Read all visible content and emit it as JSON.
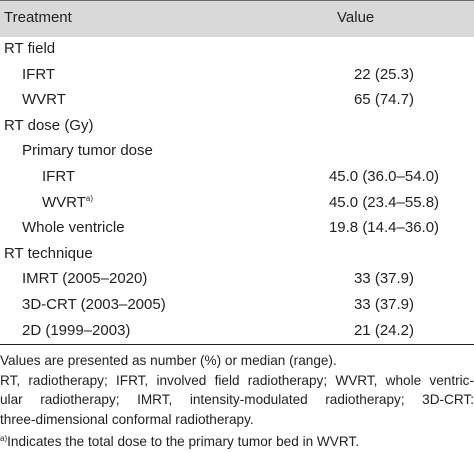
{
  "table": {
    "header": {
      "col1": "Treatment",
      "col2": "Value"
    },
    "rows": [
      {
        "label": "RT field",
        "value": ""
      },
      {
        "label": "IFRT",
        "value": "22 (25.3)"
      },
      {
        "label": "WVRT",
        "value": "65 (74.7)"
      },
      {
        "label": "RT dose (Gy)",
        "value": ""
      },
      {
        "label": "Primary tumor dose",
        "value": ""
      },
      {
        "label": "IFRT",
        "value": "45.0 (36.0–54.0)"
      },
      {
        "label": "WVRT",
        "sup": "a)",
        "value": "45.0 (23.4–55.8)"
      },
      {
        "label": "Whole ventricle",
        "value": "19.8 (14.4–36.0)"
      },
      {
        "label": "RT technique",
        "value": ""
      },
      {
        "label": "IMRT (2005–2020)",
        "value": "33 (37.9)"
      },
      {
        "label": "3D-CRT (2003–2005)",
        "value": "33 (37.9)"
      },
      {
        "label": "2D (1999–2003)",
        "value": "21 (24.2)"
      }
    ]
  },
  "notes": {
    "line1": "Values are presented as number (%) or median (range).",
    "line2": "RT, radiotherapy; IFRT, involved field radiotherapy; WVRT, whole ventric-",
    "line3": "ular radiotherapy; IMRT, intensity-modulated radiotherapy; 3D-CRT:",
    "line4": "three-dimensional conformal radiotherapy.",
    "footnote_mark": "a)",
    "footnote_text": "Indicates the total dose to the primary tumor bed in WVRT."
  }
}
